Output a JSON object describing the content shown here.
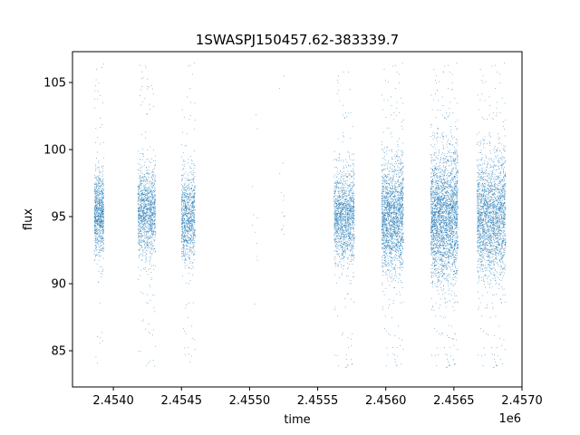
{
  "chart_data": {
    "type": "scatter",
    "title": "1SWASPJ150457.62-383339.7",
    "xlabel": "time",
    "ylabel": "flux",
    "x_offset_label": "1e6",
    "xlim": [
      2.4537,
      2.457
    ],
    "ylim": [
      82.3,
      107.3
    ],
    "x_ticks": [
      2.454,
      2.4545,
      2.455,
      2.4555,
      2.456,
      2.4565,
      2.457
    ],
    "x_tick_labels": [
      "2.4540",
      "2.4545",
      "2.4550",
      "2.4555",
      "2.4560",
      "2.4565",
      "2.4570"
    ],
    "y_ticks": [
      85,
      90,
      95,
      100,
      105
    ],
    "y_tick_labels": [
      "85",
      "90",
      "95",
      "100",
      "105"
    ],
    "grid": false,
    "color": "#1f77b4",
    "series": [
      {
        "clusters": [
          {
            "x_start": 2.45386,
            "x_end": 2.45393,
            "center": 95.2,
            "spread": 1.5,
            "count": 900
          },
          {
            "x_start": 2.45418,
            "x_end": 2.45431,
            "center": 95.3,
            "spread": 1.6,
            "count": 1300
          },
          {
            "x_start": 2.4545,
            "x_end": 2.4546,
            "center": 95.0,
            "spread": 1.6,
            "count": 1000
          },
          {
            "x_start": 2.45502,
            "x_end": 2.45506,
            "center": 94.5,
            "spread": 2.5,
            "count": 12
          },
          {
            "x_start": 2.45522,
            "x_end": 2.45526,
            "center": 95.5,
            "spread": 2.0,
            "count": 14
          },
          {
            "x_start": 2.45562,
            "x_end": 2.45577,
            "center": 95.0,
            "spread": 1.7,
            "count": 1500
          },
          {
            "x_start": 2.45597,
            "x_end": 2.45613,
            "center": 95.0,
            "spread": 2.0,
            "count": 2000
          },
          {
            "x_start": 2.45633,
            "x_end": 2.45653,
            "center": 95.0,
            "spread": 2.4,
            "count": 3000
          },
          {
            "x_start": 2.45667,
            "x_end": 2.45688,
            "center": 95.0,
            "spread": 2.2,
            "count": 2400
          }
        ]
      }
    ]
  }
}
